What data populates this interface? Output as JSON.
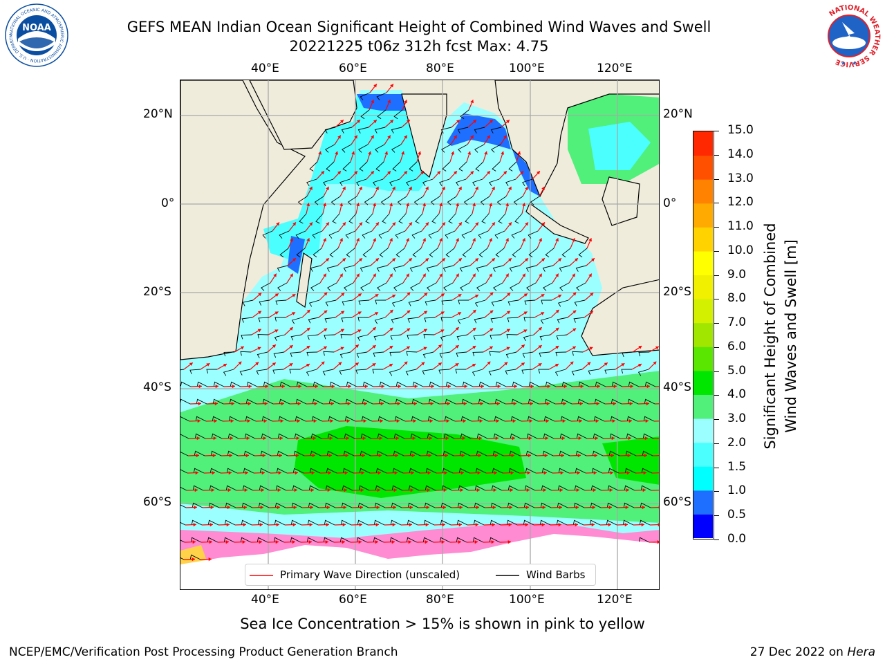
{
  "header": {
    "title_line1": "GEFS MEAN Indian Ocean Significant Height of Combined Wind Waves and Swell",
    "title_line2": "20221225 t06z 312h fcst   Max: 4.75"
  },
  "logos": {
    "noaa": {
      "text": "NOAA",
      "arc_text": "NATIONAL OCEANIC AND ATMOSPHERIC ADMINISTRATION · U.S. DEPARTMENT OF COMMERCE",
      "color": "#0a4ea1"
    },
    "nws": {
      "arc_text": "NATIONAL WEATHER SERVICE",
      "color": "#e0202a"
    }
  },
  "map": {
    "lon_labels": [
      "40°E",
      "60°E",
      "80°E",
      "100°E",
      "120°E"
    ],
    "lat_labels": [
      "20°N",
      "0°",
      "20°S",
      "40°S",
      "60°S"
    ],
    "land_color": "#efecdc",
    "ice_note_colors": [
      "#ff40ff",
      "#ff8cd2",
      "#ffd24a"
    ]
  },
  "legend": {
    "wave_label": "Primary Wave Direction (unscaled)",
    "wave_color": "#ff0000",
    "barb_label": "Wind Barbs",
    "barb_color": "#000000"
  },
  "colorbar": {
    "title_line1": "Significant Height of Combined",
    "title_line2": "Wind Waves and Swell [m]",
    "ticks": [
      "0.0",
      "0.5",
      "1.0",
      "1.5",
      "2.0",
      "3.0",
      "4.0",
      "5.0",
      "6.0",
      "7.0",
      "8.0",
      "9.0",
      "10.0",
      "11.0",
      "12.0",
      "13.0",
      "14.0",
      "15.0"
    ],
    "colors": [
      "#0000ff",
      "#1e6eff",
      "#00ffff",
      "#4cffff",
      "#9cffff",
      "#50f07a",
      "#00e600",
      "#5ae600",
      "#a0e600",
      "#d2f000",
      "#f0f000",
      "#ffff00",
      "#ffd200",
      "#ffaa00",
      "#ff8200",
      "#ff5000",
      "#ff2800"
    ]
  },
  "caption": "Sea Ice Concentration > 15% is shown in pink to yellow",
  "footer": {
    "left": "NCEP/EMC/Verification Post Processing Product Generation Branch",
    "right_prefix": "27 Dec 2022 on ",
    "right_machine": "Hera"
  }
}
